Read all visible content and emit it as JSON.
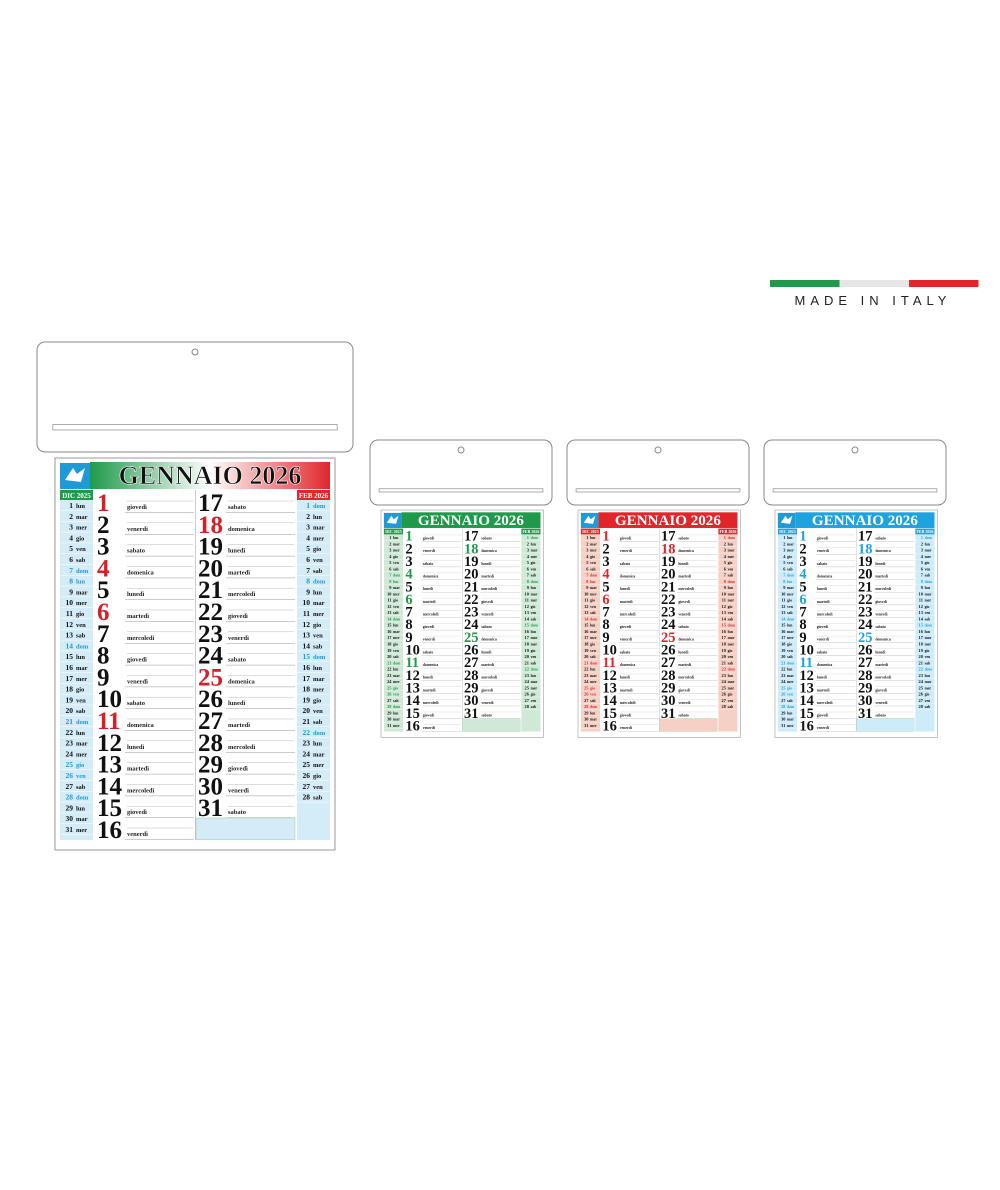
{
  "badge": {
    "text": "MADE IN ITALY",
    "flag": [
      "#1f9a4b",
      "#e6e6e6",
      "#e0262b"
    ]
  },
  "main": {
    "title": "GENNAIO 2026",
    "band": [
      "#1f9a4b",
      "#ffffff",
      "#e0262b"
    ],
    "side": "#d4ecf8",
    "highlight": "#1e9ad6",
    "holiday": "#d42027",
    "prev_month": "DIC 2025",
    "next_month": "FEB 2026",
    "prev_days": [
      [
        1,
        "lun"
      ],
      [
        2,
        "mar"
      ],
      [
        3,
        "mer"
      ],
      [
        4,
        "gio"
      ],
      [
        5,
        "ven"
      ],
      [
        6,
        "sab"
      ],
      [
        7,
        "dom"
      ],
      [
        8,
        "lun"
      ],
      [
        9,
        "mar"
      ],
      [
        10,
        "mer"
      ],
      [
        11,
        "gio"
      ],
      [
        12,
        "ven"
      ],
      [
        13,
        "sab"
      ],
      [
        14,
        "dom"
      ],
      [
        15,
        "lun"
      ],
      [
        16,
        "mar"
      ],
      [
        17,
        "mer"
      ],
      [
        18,
        "gio"
      ],
      [
        19,
        "ven"
      ],
      [
        20,
        "sab"
      ],
      [
        21,
        "dom"
      ],
      [
        22,
        "lun"
      ],
      [
        23,
        "mar"
      ],
      [
        24,
        "mer"
      ],
      [
        25,
        "gio"
      ],
      [
        26,
        "ven"
      ],
      [
        27,
        "sab"
      ],
      [
        28,
        "dom"
      ],
      [
        29,
        "lun"
      ],
      [
        30,
        "mar"
      ],
      [
        31,
        "mer"
      ]
    ],
    "prev_highlight": [
      7,
      8,
      14,
      21,
      25,
      26,
      28
    ],
    "days": [
      [
        1,
        "giovedì"
      ],
      [
        2,
        "venerdì"
      ],
      [
        3,
        "sabato"
      ],
      [
        4,
        "domenica"
      ],
      [
        5,
        "lunedì"
      ],
      [
        6,
        "martedì"
      ],
      [
        7,
        "mercoledì"
      ],
      [
        8,
        "giovedì"
      ],
      [
        9,
        "venerdì"
      ],
      [
        10,
        "sabato"
      ],
      [
        11,
        "domenica"
      ],
      [
        12,
        "lunedì"
      ],
      [
        13,
        "martedì"
      ],
      [
        14,
        "mercoledì"
      ],
      [
        15,
        "giovedì"
      ],
      [
        16,
        "venerdì"
      ],
      [
        17,
        "sabato"
      ],
      [
        18,
        "domenica"
      ],
      [
        19,
        "lunedì"
      ],
      [
        20,
        "martedì"
      ],
      [
        21,
        "mercoledì"
      ],
      [
        22,
        "giovedì"
      ],
      [
        23,
        "venerdì"
      ],
      [
        24,
        "sabato"
      ],
      [
        25,
        "domenica"
      ],
      [
        26,
        "lunedì"
      ],
      [
        27,
        "martedì"
      ],
      [
        28,
        "mercoledì"
      ],
      [
        29,
        "giovedì"
      ],
      [
        30,
        "venerdì"
      ],
      [
        31,
        "sabato"
      ]
    ],
    "holidays": [
      1,
      4,
      6,
      11,
      18,
      25
    ],
    "next_days": [
      [
        1,
        "dom"
      ],
      [
        2,
        "lun"
      ],
      [
        3,
        "mar"
      ],
      [
        4,
        "mer"
      ],
      [
        5,
        "gio"
      ],
      [
        6,
        "ven"
      ],
      [
        7,
        "sab"
      ],
      [
        8,
        "dom"
      ],
      [
        9,
        "lun"
      ],
      [
        10,
        "mar"
      ],
      [
        11,
        "mer"
      ],
      [
        12,
        "gio"
      ],
      [
        13,
        "ven"
      ],
      [
        14,
        "sab"
      ],
      [
        15,
        "dom"
      ],
      [
        16,
        "lun"
      ],
      [
        17,
        "mar"
      ],
      [
        18,
        "mer"
      ],
      [
        19,
        "gio"
      ],
      [
        20,
        "ven"
      ],
      [
        21,
        "sab"
      ],
      [
        22,
        "dom"
      ],
      [
        23,
        "lun"
      ],
      [
        24,
        "mar"
      ],
      [
        25,
        "mer"
      ],
      [
        26,
        "gio"
      ],
      [
        27,
        "ven"
      ],
      [
        28,
        "sab"
      ]
    ],
    "next_highlight": [
      1,
      8,
      15,
      22
    ]
  },
  "variants": [
    {
      "title": "GENNAIO 2026",
      "color": "#1f9a4b",
      "tint": "#cfe9d6"
    },
    {
      "title": "GENNAIO 2026",
      "color": "#e0262b",
      "tint": "#f6d0c4"
    },
    {
      "title": "GENNAIO 2026",
      "color": "#1ea3de",
      "tint": "#cdebf8"
    }
  ]
}
